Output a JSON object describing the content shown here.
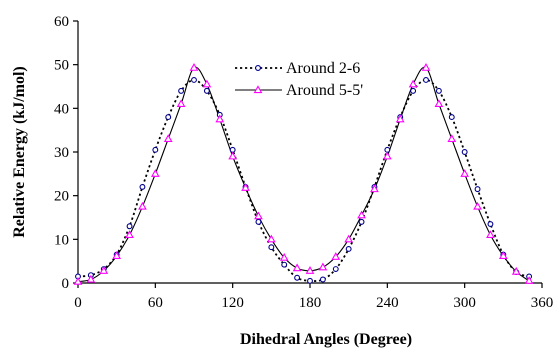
{
  "chart_data": {
    "type": "line",
    "xlabel": "Dihedral Angles (Degree)",
    "ylabel": "Relative Energy (kJ/mol)",
    "xlim": [
      0,
      360
    ],
    "ylim": [
      0,
      60
    ],
    "xticks": [
      0,
      60,
      120,
      180,
      240,
      300,
      360
    ],
    "yticks": [
      0,
      10,
      20,
      30,
      40,
      50,
      60
    ],
    "grid": false,
    "legend_position": "top-center",
    "series": [
      {
        "name": "Around 2-6",
        "line_style": "dotted",
        "marker": "circle",
        "color": "#00008b",
        "line_color": "#000000",
        "x": [
          0,
          10,
          20,
          30,
          40,
          50,
          60,
          70,
          80,
          90,
          100,
          110,
          120,
          130,
          140,
          150,
          160,
          170,
          180,
          190,
          200,
          210,
          220,
          230,
          240,
          250,
          260,
          270,
          280,
          290,
          300,
          310,
          320,
          330,
          340,
          350
        ],
        "y": [
          1.5,
          1.8,
          3.2,
          6.5,
          13,
          22,
          30.5,
          38,
          44,
          46.5,
          44,
          38.5,
          30.5,
          22,
          14,
          8.2,
          4.2,
          1.2,
          0.5,
          0.8,
          3.2,
          7.8,
          14,
          22,
          30.5,
          38,
          44,
          46.5,
          44,
          38,
          30,
          21.5,
          13.5,
          6.5,
          2.5,
          1.5
        ]
      },
      {
        "name": "Around 5-5'",
        "line_style": "solid",
        "marker": "triangle",
        "color": "#ff00ff",
        "line_color": "#000000",
        "x": [
          0,
          10,
          20,
          30,
          40,
          50,
          60,
          70,
          80,
          90,
          100,
          110,
          120,
          130,
          140,
          150,
          160,
          170,
          180,
          190,
          200,
          210,
          220,
          230,
          240,
          250,
          260,
          270,
          280,
          290,
          300,
          310,
          320,
          330,
          340,
          350
        ],
        "y": [
          0.3,
          0.8,
          2.8,
          6.2,
          11,
          17.5,
          25,
          33,
          41,
          49.3,
          45.5,
          37.5,
          29,
          21.8,
          15.3,
          10,
          5.8,
          3.4,
          2.8,
          3.6,
          6,
          10,
          15.5,
          21.5,
          29,
          37.5,
          45.5,
          49.3,
          41,
          33,
          25,
          17.5,
          11,
          6.2,
          2.6,
          0.5
        ]
      }
    ]
  }
}
